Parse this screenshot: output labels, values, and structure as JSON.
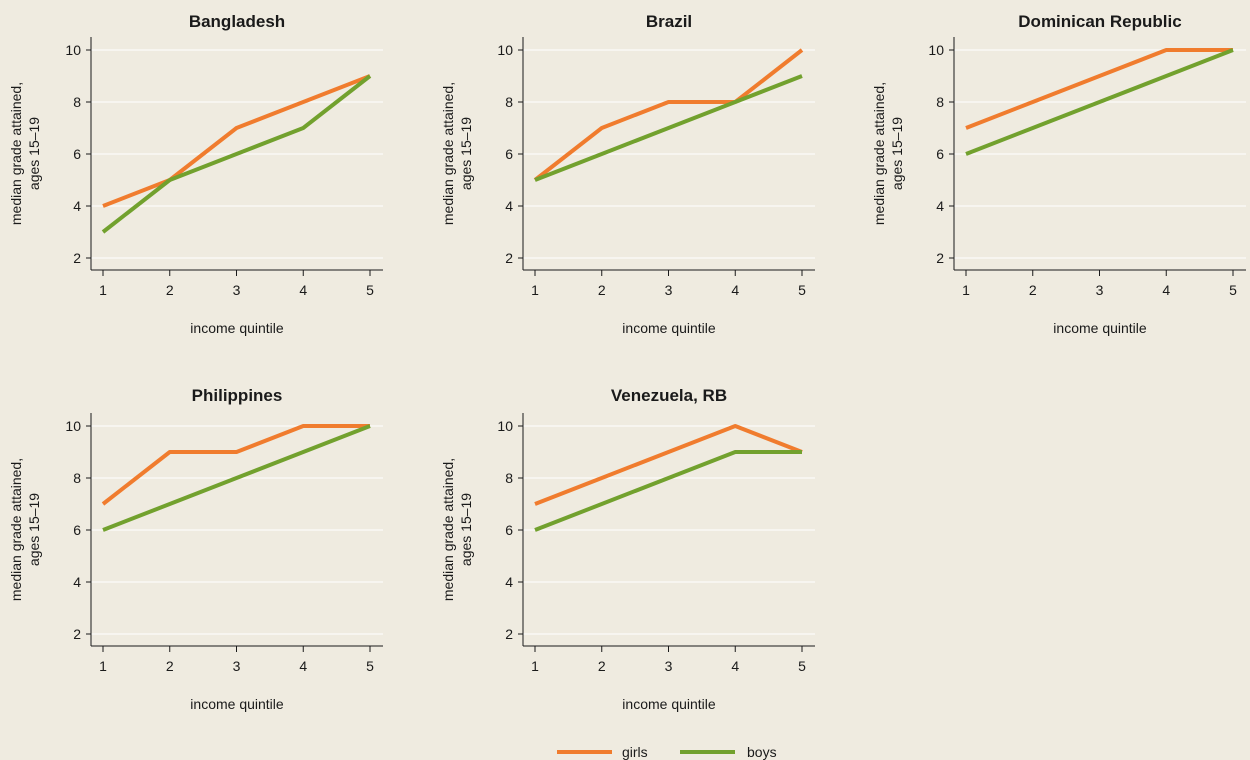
{
  "chart_data": [
    {
      "type": "line",
      "title": "Bangladesh",
      "xlabel": "income quintile",
      "ylabel": [
        "median grade attained,",
        "ages 15–19"
      ],
      "x": [
        1,
        2,
        3,
        4,
        5
      ],
      "yticks": [
        2,
        4,
        6,
        8,
        10
      ],
      "ylim": [
        1.5,
        10.5
      ],
      "grid": true,
      "series": [
        {
          "name": "girls",
          "values": [
            4,
            5,
            7,
            8,
            9
          ]
        },
        {
          "name": "boys",
          "values": [
            3,
            5,
            6,
            7,
            9
          ]
        }
      ]
    },
    {
      "type": "line",
      "title": "Brazil",
      "xlabel": "income quintile",
      "ylabel": [
        "median grade attained,",
        "ages 15–19"
      ],
      "x": [
        1,
        2,
        3,
        4,
        5
      ],
      "yticks": [
        2,
        4,
        6,
        8,
        10
      ],
      "ylim": [
        1.5,
        10.5
      ],
      "grid": true,
      "series": [
        {
          "name": "girls",
          "values": [
            5,
            7,
            8,
            8,
            10
          ]
        },
        {
          "name": "boys",
          "values": [
            5,
            6,
            7,
            8,
            9
          ]
        }
      ]
    },
    {
      "type": "line",
      "title": "Dominican Republic",
      "xlabel": "income quintile",
      "ylabel": [
        "median grade attained,",
        "ages 15–19"
      ],
      "x": [
        1,
        2,
        3,
        4,
        5
      ],
      "yticks": [
        2,
        4,
        6,
        8,
        10
      ],
      "ylim": [
        1.5,
        10.5
      ],
      "grid": true,
      "series": [
        {
          "name": "girls",
          "values": [
            7,
            8,
            9,
            10,
            10
          ]
        },
        {
          "name": "boys",
          "values": [
            6,
            7,
            8,
            9,
            10
          ]
        }
      ]
    },
    {
      "type": "line",
      "title": "Philippines",
      "xlabel": "income quintile",
      "ylabel": [
        "median grade attained,",
        "ages 15–19"
      ],
      "x": [
        1,
        2,
        3,
        4,
        5
      ],
      "yticks": [
        2,
        4,
        6,
        8,
        10
      ],
      "ylim": [
        1.5,
        10.5
      ],
      "grid": true,
      "series": [
        {
          "name": "girls",
          "values": [
            7,
            9,
            9,
            10,
            10
          ]
        },
        {
          "name": "boys",
          "values": [
            6,
            7,
            8,
            9,
            10
          ]
        }
      ]
    },
    {
      "type": "line",
      "title": "Venezuela, RB",
      "xlabel": "income quintile",
      "ylabel": [
        "median grade attained,",
        "ages 15–19"
      ],
      "x": [
        1,
        2,
        3,
        4,
        5
      ],
      "yticks": [
        2,
        4,
        6,
        8,
        10
      ],
      "ylim": [
        1.5,
        10.5
      ],
      "grid": true,
      "series": [
        {
          "name": "girls",
          "values": [
            7,
            8,
            9,
            10,
            9
          ]
        },
        {
          "name": "boys",
          "values": [
            6,
            7,
            8,
            9,
            9
          ]
        }
      ]
    }
  ],
  "legend": {
    "placement": "bottom-center",
    "items": [
      {
        "label": "girls",
        "color": "#f07c2e"
      },
      {
        "label": "boys",
        "color": "#72a12e"
      }
    ]
  },
  "colors": {
    "background": "#efebe0",
    "girls": "#f07c2e",
    "boys": "#72a12e",
    "grid": "#ffffff",
    "text": "#1a1a1a"
  }
}
